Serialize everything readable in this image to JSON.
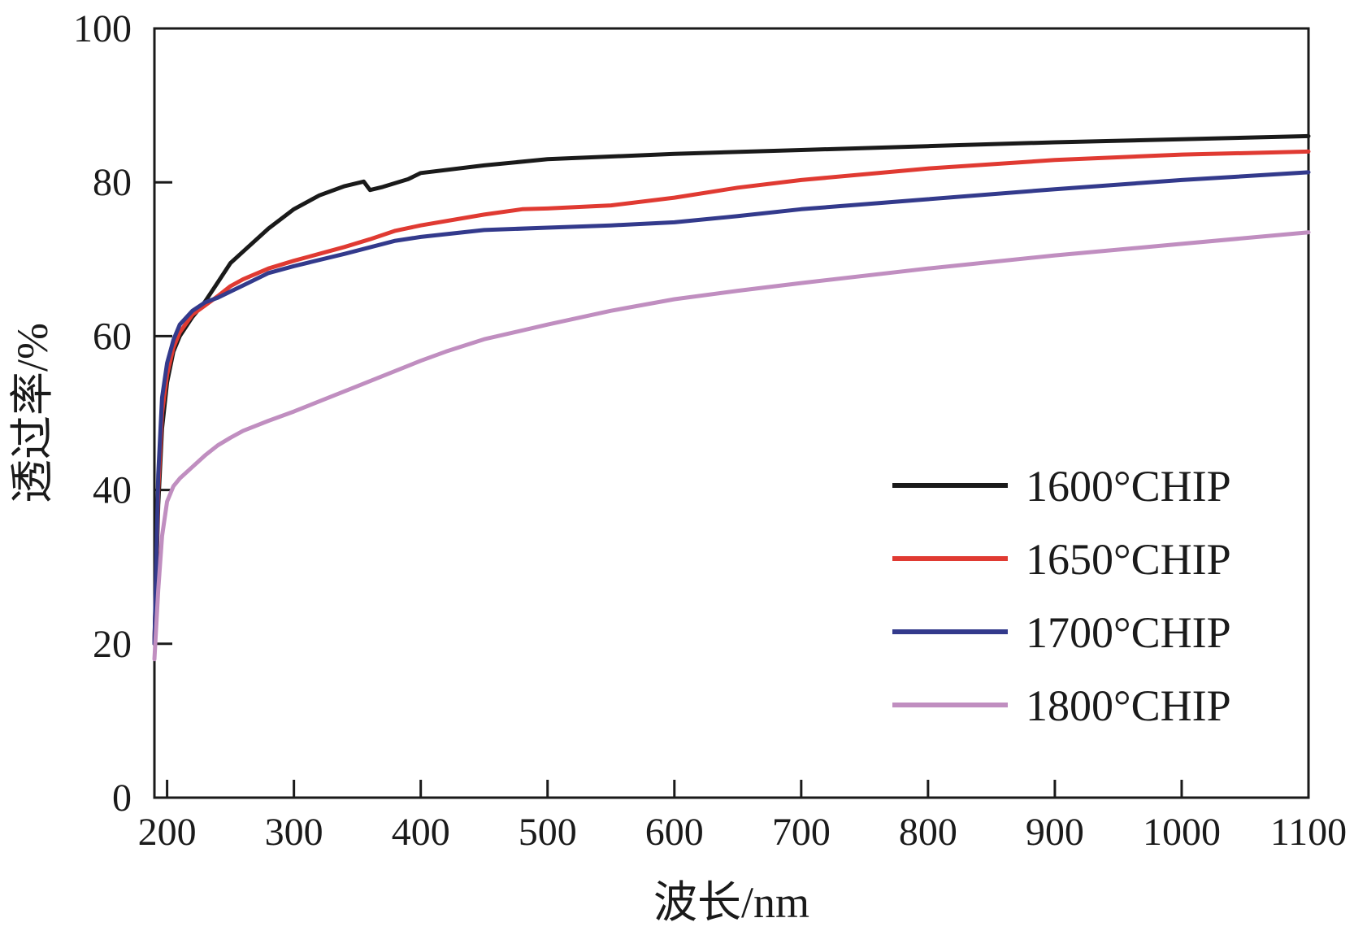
{
  "chart_data": {
    "type": "line",
    "title": "",
    "xlabel": "波长/nm",
    "ylabel": "透过率/%",
    "xlim": [
      190,
      1100
    ],
    "ylim": [
      0,
      100
    ],
    "xticks": [
      200,
      300,
      400,
      500,
      600,
      700,
      800,
      900,
      1000,
      1100
    ],
    "yticks": [
      0,
      20,
      40,
      60,
      80,
      100
    ],
    "legend_position": "bottom-right",
    "series": [
      {
        "name": "1600°CHIP",
        "color": "#1a1a1a",
        "x": [
          190,
          193,
          196,
          200,
          205,
          210,
          220,
          230,
          240,
          250,
          260,
          280,
          300,
          320,
          340,
          355,
          360,
          370,
          380,
          390,
          400,
          450,
          500,
          600,
          700,
          800,
          900,
          1000,
          1100
        ],
        "y": [
          20,
          38,
          48,
          54,
          58,
          60,
          62.5,
          64.5,
          67,
          69.5,
          71,
          74,
          76.5,
          78.3,
          79.5,
          80.1,
          79,
          79.4,
          79.9,
          80.4,
          81.2,
          82.2,
          83,
          83.7,
          84.2,
          84.7,
          85.2,
          85.6,
          86
        ]
      },
      {
        "name": "1650°CHIP",
        "color": "#e03a32",
        "x": [
          190,
          193,
          196,
          200,
          205,
          210,
          220,
          230,
          240,
          250,
          260,
          280,
          300,
          320,
          340,
          360,
          380,
          400,
          450,
          480,
          500,
          550,
          600,
          650,
          700,
          800,
          900,
          1000,
          1100
        ],
        "y": [
          20,
          40,
          50,
          55,
          58.5,
          60.5,
          62.8,
          64,
          65.2,
          66.5,
          67.4,
          68.8,
          69.8,
          70.7,
          71.6,
          72.6,
          73.7,
          74.4,
          75.8,
          76.5,
          76.6,
          77,
          78,
          79.3,
          80.3,
          81.8,
          82.9,
          83.6,
          84
        ]
      },
      {
        "name": "1700°CHIP",
        "color": "#333a8c",
        "x": [
          190,
          193,
          196,
          200,
          205,
          210,
          220,
          230,
          240,
          250,
          260,
          280,
          300,
          340,
          380,
          400,
          450,
          500,
          550,
          600,
          650,
          700,
          800,
          900,
          1000,
          1100
        ],
        "y": [
          20,
          42,
          52,
          56.5,
          59.5,
          61.5,
          63.3,
          64.4,
          65,
          65.8,
          66.6,
          68.2,
          69.1,
          70.7,
          72.4,
          72.9,
          73.8,
          74.1,
          74.4,
          74.8,
          75.6,
          76.5,
          77.8,
          79.1,
          80.3,
          81.3
        ]
      },
      {
        "name": "1800°CHIP",
        "color": "#c08ec0",
        "x": [
          190,
          193,
          196,
          200,
          205,
          210,
          220,
          230,
          240,
          250,
          260,
          280,
          300,
          350,
          400,
          420,
          450,
          500,
          550,
          600,
          650,
          700,
          800,
          900,
          1000,
          1100
        ],
        "y": [
          18,
          27,
          34,
          38.5,
          40.5,
          41.5,
          43,
          44.5,
          45.8,
          46.8,
          47.7,
          49,
          50.2,
          53.5,
          56.8,
          58,
          59.6,
          61.5,
          63.3,
          64.8,
          65.9,
          66.9,
          68.8,
          70.5,
          72,
          73.5
        ]
      }
    ]
  }
}
